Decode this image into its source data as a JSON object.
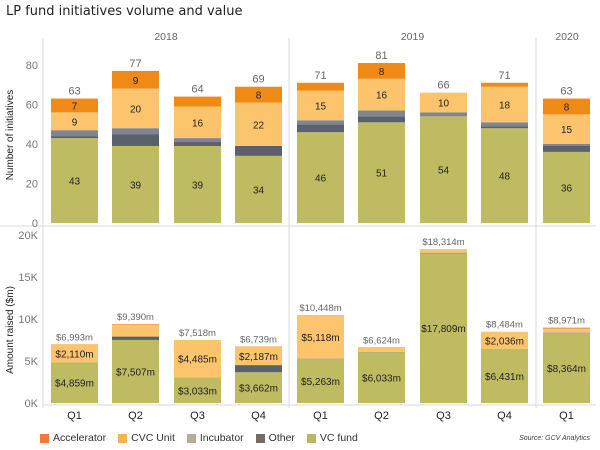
{
  "title": "LP fund initiatives volume and value",
  "source": "Source: GCV Analytics",
  "colors": {
    "Accelerator": "#ef8a17",
    "CVC Unit": "#fcc46c",
    "Incubator": "#7f8591",
    "Other": "#5a606c",
    "VC fund": "#bebb62"
  },
  "legend_colors": {
    "Accelerator": "#ef7a40",
    "CVC Unit": "#fbb34f",
    "Incubator": "#b5aca0",
    "Other": "#756c66",
    "VC fund": "#b8b860"
  },
  "legend": [
    "Accelerator",
    "CVC Unit",
    "Incubator",
    "Other",
    "VC fund"
  ],
  "chart_data": [
    {
      "type": "bar",
      "stacked": true,
      "title": "",
      "ylabel": "Number of initiatives",
      "xlabel": "",
      "ylim": [
        0,
        90
      ],
      "yticks": [
        0,
        20,
        40,
        60,
        80
      ],
      "ytick_labels": [
        "0",
        "20",
        "40",
        "60",
        "80"
      ],
      "year_groups": [
        {
          "label": "2018",
          "count": 4
        },
        {
          "label": "2019",
          "count": 4
        },
        {
          "label": "2020",
          "count": 1
        }
      ],
      "categories": [
        "Q1",
        "Q2",
        "Q3",
        "Q4",
        "Q1",
        "Q2",
        "Q3",
        "Q4",
        "Q1"
      ],
      "totals": [
        63,
        77,
        64,
        69,
        71,
        81,
        66,
        71,
        63
      ],
      "total_labels": [
        "63",
        "77",
        "64",
        "69",
        "71",
        "81",
        "66",
        "71",
        "63"
      ],
      "series": [
        {
          "name": "VC fund",
          "values": [
            43,
            39,
            39,
            34,
            46,
            51,
            54,
            48,
            36
          ],
          "labels": [
            "43",
            "39",
            "39",
            "34",
            "46",
            "51",
            "54",
            "48",
            "36"
          ]
        },
        {
          "name": "Other",
          "values": [
            1,
            6,
            2,
            5,
            4,
            3,
            0,
            1,
            3
          ],
          "labels": [
            "",
            "",
            "",
            "",
            "",
            "",
            "",
            "",
            ""
          ]
        },
        {
          "name": "Incubator",
          "values": [
            3,
            3,
            2,
            0,
            2,
            3,
            2,
            2,
            1
          ],
          "labels": [
            "",
            "",
            "",
            "",
            "",
            "",
            "",
            "",
            ""
          ]
        },
        {
          "name": "CVC Unit",
          "values": [
            9,
            20,
            16,
            22,
            15,
            16,
            10,
            18,
            15
          ],
          "labels": [
            "9",
            "20",
            "16",
            "22",
            "15",
            "16",
            "10",
            "18",
            "15"
          ]
        },
        {
          "name": "Accelerator",
          "values": [
            7,
            9,
            5,
            8,
            4,
            8,
            0,
            2,
            8
          ],
          "labels": [
            "7",
            "9",
            "",
            "8",
            "",
            "8",
            "",
            "",
            "8"
          ]
        }
      ]
    },
    {
      "type": "bar",
      "stacked": true,
      "title": "",
      "ylabel": "Amount raised ($m)",
      "xlabel": "",
      "ylim": [
        0,
        20500
      ],
      "yticks": [
        0,
        5000,
        10000,
        15000,
        20000
      ],
      "ytick_labels": [
        "0K",
        "5K",
        "10K",
        "15K",
        "20K"
      ],
      "categories": [
        "Q1",
        "Q2",
        "Q3",
        "Q4",
        "Q1",
        "Q2",
        "Q3",
        "Q4",
        "Q1"
      ],
      "totals": [
        6993,
        9390,
        7518,
        6739,
        10448,
        6624,
        18314,
        8484,
        8971
      ],
      "total_labels": [
        "$6,993m",
        "$9,390m",
        "$7,518m",
        "$6,739m",
        "$10,448m",
        "$6,624m",
        "$18,314m",
        "$8,484m",
        "$8,971m"
      ],
      "series": [
        {
          "name": "VC fund",
          "values": [
            4859,
            7507,
            3033,
            3662,
            5263,
            6033,
            17809,
            6431,
            8364
          ],
          "labels": [
            "$4,859m",
            "$7,507m",
            "$3,033m",
            "$3,662m",
            "$5,263m",
            "$6,033m",
            "$17,809m",
            "$6,431m",
            "$8,364m"
          ]
        },
        {
          "name": "Other",
          "values": [
            0,
            400,
            0,
            850,
            0,
            0,
            0,
            0,
            0
          ],
          "labels": [
            "",
            "",
            "",
            "",
            "",
            "",
            "",
            "",
            ""
          ]
        },
        {
          "name": "Incubator",
          "values": [
            0,
            0,
            0,
            0,
            30,
            50,
            80,
            0,
            60
          ],
          "labels": [
            "",
            "",
            "",
            "",
            "",
            "",
            "",
            "",
            ""
          ]
        },
        {
          "name": "CVC Unit",
          "values": [
            2110,
            1403,
            4485,
            2187,
            5118,
            481,
            425,
            2036,
            422
          ],
          "labels": [
            "$2,110m",
            "",
            "$4,485m",
            "$2,187m",
            "$5,118m",
            "",
            "",
            "$2,036m",
            ""
          ]
        },
        {
          "name": "Accelerator",
          "values": [
            24,
            80,
            0,
            40,
            37,
            60,
            0,
            17,
            125
          ],
          "labels": [
            "",
            "",
            "",
            "",
            "",
            "",
            "",
            "",
            ""
          ]
        }
      ]
    }
  ]
}
